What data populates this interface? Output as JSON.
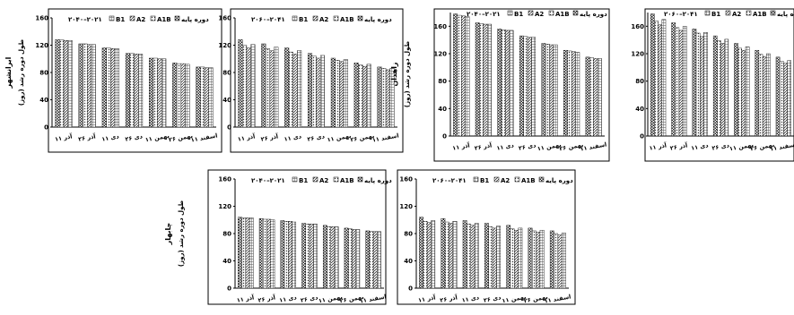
{
  "chart_data": [
    {
      "type": "bar",
      "site": "ایرانشهر",
      "ylabel": "طول دوره رشد (روز)",
      "period": "۲۰۴۰–۲۰۲۱",
      "categories": [
        "۱۱ آذر",
        "۲۶ آذر",
        "۱۱ دی",
        "۲۶ دی",
        "۱۱ بهمن",
        "۲۶ بهمن",
        "۱۱ اسفند"
      ],
      "ylim": [
        0,
        160
      ],
      "yticks": [
        0,
        40,
        80,
        120,
        160
      ],
      "series": [
        {
          "name": "دوره پایه",
          "values": [
            128,
            122,
            116,
            108,
            101,
            94,
            88
          ]
        },
        {
          "name": "A1B",
          "values": [
            128,
            122,
            116,
            108,
            101,
            93,
            88
          ]
        },
        {
          "name": "A2",
          "values": [
            127,
            121,
            115,
            107,
            100,
            93,
            87
          ]
        },
        {
          "name": "B1",
          "values": [
            127,
            121,
            115,
            107,
            100,
            92,
            87
          ]
        }
      ]
    },
    {
      "type": "bar",
      "site": "",
      "ylabel": "",
      "period": "۲۰۶۰–۲۰۴۱",
      "categories": [
        "۱۱ آذر",
        "۲۶ آذر",
        "۱۱ دی",
        "۲۶ دی",
        "۱۱ بهمن",
        "۲۶ بهمن",
        "۱۱ اسفند"
      ],
      "ylim": [
        0,
        160
      ],
      "yticks": [
        0,
        40,
        80,
        120,
        160
      ],
      "series": [
        {
          "name": "دوره پایه",
          "values": [
            128,
            122,
            116,
            108,
            101,
            94,
            88
          ]
        },
        {
          "name": "A1B",
          "values": [
            120,
            115,
            110,
            104,
            98,
            91,
            86
          ]
        },
        {
          "name": "A2",
          "values": [
            116,
            112,
            107,
            101,
            96,
            89,
            84
          ]
        },
        {
          "name": "B1",
          "values": [
            121,
            117,
            112,
            105,
            99,
            92,
            86
          ]
        }
      ]
    },
    {
      "type": "bar",
      "site": "زاهدان",
      "ylabel": "طول دوره رشد (روز)",
      "period": "۲۰۴۰–۲۰۲۱",
      "categories": [
        "۱۱ آذر",
        "۲۶ آذر",
        "۱۱ دی",
        "۲۶ دی",
        "۱۱ بهمن",
        "۲۶ بهمن",
        "۱۱ اسفند"
      ],
      "ylim": [
        0,
        180
      ],
      "yticks": [
        0,
        40,
        80,
        120,
        160
      ],
      "series": [
        {
          "name": "دوره پایه",
          "values": [
            178,
            165,
            156,
            146,
            135,
            125,
            115
          ]
        },
        {
          "name": "A1B",
          "values": [
            176,
            164,
            155,
            145,
            134,
            124,
            114
          ]
        },
        {
          "name": "A2",
          "values": [
            175,
            163,
            154,
            144,
            133,
            123,
            113
          ]
        },
        {
          "name": "B1",
          "values": [
            174,
            163,
            154,
            144,
            133,
            122,
            113
          ]
        }
      ]
    },
    {
      "type": "bar",
      "site": "",
      "ylabel": "",
      "period": "۲۰۶۰–۲۰۴۱",
      "categories": [
        "۱۱ آذر",
        "۲۶ آذر",
        "۱۱ دی",
        "۲۶ دی",
        "۱۱ بهمن",
        "۲۶ بهمن",
        "۱۱ اسفند"
      ],
      "ylim": [
        0,
        180
      ],
      "yticks": [
        0,
        40,
        80,
        120,
        160
      ],
      "series": [
        {
          "name": "دوره پایه",
          "values": [
            178,
            165,
            156,
            146,
            135,
            125,
            115
          ]
        },
        {
          "name": "A1B",
          "values": [
            168,
            158,
            150,
            139,
            128,
            119,
            109
          ]
        },
        {
          "name": "A2",
          "values": [
            162,
            154,
            145,
            135,
            125,
            116,
            106
          ]
        },
        {
          "name": "B1",
          "values": [
            170,
            160,
            151,
            141,
            130,
            120,
            110
          ]
        }
      ]
    },
    {
      "type": "bar",
      "site": "چابهار",
      "ylabel": "طول دوره رشد (روز)",
      "period": "۲۰۴۰–۲۰۲۱",
      "categories": [
        "۱۱ آذر",
        "۲۶ آذر",
        "۱۱ دی",
        "۲۶ دی",
        "۱۱ بهمن",
        "۲۶ بهمن",
        "۱۱ اسفند"
      ],
      "ylim": [
        0,
        160
      ],
      "yticks": [
        0,
        40,
        80,
        120,
        160
      ],
      "series": [
        {
          "name": "دوره پایه",
          "values": [
            104,
            102,
            99,
            95,
            92,
            88,
            84
          ]
        },
        {
          "name": "A1B",
          "values": [
            103,
            101,
            98,
            94,
            90,
            87,
            83
          ]
        },
        {
          "name": "A2",
          "values": [
            103,
            101,
            98,
            94,
            90,
            86,
            83
          ]
        },
        {
          "name": "B1",
          "values": [
            103,
            100,
            97,
            94,
            90,
            86,
            83
          ]
        }
      ]
    },
    {
      "type": "bar",
      "site": "",
      "ylabel": "",
      "period": "۲۰۶۰–۲۰۴۱",
      "categories": [
        "۱۱ آذر",
        "۲۶ آذر",
        "۱۱ دی",
        "۲۶ دی",
        "۱۱ بهمن",
        "۲۶ بهمن",
        "۱۱ اسفند"
      ],
      "ylim": [
        0,
        160
      ],
      "yticks": [
        0,
        40,
        80,
        120,
        160
      ],
      "series": [
        {
          "name": "دوره پایه",
          "values": [
            104,
            102,
            99,
            95,
            92,
            88,
            84
          ]
        },
        {
          "name": "A1B",
          "values": [
            98,
            97,
            94,
            90,
            87,
            84,
            80
          ]
        },
        {
          "name": "A2",
          "values": [
            96,
            95,
            92,
            88,
            85,
            82,
            78
          ]
        },
        {
          "name": "B1",
          "values": [
            99,
            98,
            95,
            91,
            88,
            85,
            81
          ]
        }
      ]
    }
  ]
}
